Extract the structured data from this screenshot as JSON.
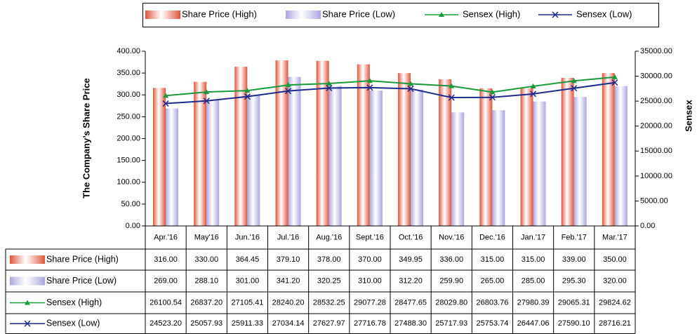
{
  "chart_data": {
    "type": "bar-line",
    "y_label": "The Company’s Share Price",
    "y2_label": "Sensex",
    "categories": [
      "Apr.'16",
      "May'16",
      "Jun.'16",
      "Jul.'16",
      "Aug.'16",
      "Sept.'16",
      "Oct.'16",
      "Nov.'16",
      "Dec.'16",
      "Jan.'17",
      "Feb.'17",
      "Mar.'17"
    ],
    "ylim": [
      0,
      400
    ],
    "yticks": [
      {
        "value": 0,
        "label": "0.00"
      },
      {
        "value": 50,
        "label": "50.00"
      },
      {
        "value": 100,
        "label": "100.00"
      },
      {
        "value": 150,
        "label": "150.00"
      },
      {
        "value": 200,
        "label": "200.00"
      },
      {
        "value": 250,
        "label": "250.00"
      },
      {
        "value": 300,
        "label": "300.00"
      },
      {
        "value": 350,
        "label": "350.00"
      },
      {
        "value": 400,
        "label": "400.00"
      }
    ],
    "y2lim": [
      0,
      35000
    ],
    "y2ticks": [
      {
        "value": 0,
        "label": "0.00"
      },
      {
        "value": 5000,
        "label": "5000.00"
      },
      {
        "value": 10000,
        "label": "10000.00"
      },
      {
        "value": 15000,
        "label": "15000.00"
      },
      {
        "value": 20000,
        "label": "20000.00"
      },
      {
        "value": 25000,
        "label": "25000.00"
      },
      {
        "value": 30000,
        "label": "30000.00"
      },
      {
        "value": 35000,
        "label": "35000.00"
      }
    ],
    "series": [
      {
        "name": "Share Price (High)",
        "kind": "bar",
        "color": "#e0523a",
        "values": [
          316,
          330,
          364.45,
          379.1,
          378,
          370,
          349.95,
          336,
          315,
          315,
          339,
          350
        ],
        "value_labels": [
          "316.00",
          "330.00",
          "364.45",
          "379.10",
          "378.00",
          "370.00",
          "349.95",
          "336.00",
          "315.00",
          "315.00",
          "339.00",
          "350.00"
        ]
      },
      {
        "name": "Share Price (Low)",
        "kind": "bar",
        "color": "#a9a5dd",
        "values": [
          269,
          288.1,
          301,
          341.2,
          320.25,
          310,
          312.2,
          259.9,
          265,
          285,
          295.3,
          320
        ],
        "value_labels": [
          "269.00",
          "288.10",
          "301.00",
          "341.20",
          "320.25",
          "310.00",
          "312.20",
          "259.90",
          "265.00",
          "285.00",
          "295.30",
          "320.00"
        ]
      },
      {
        "name": "Sensex (High)",
        "kind": "line",
        "marker": "triangle",
        "axis": "y2",
        "color": "#1a9a3a",
        "values": [
          26100.54,
          26837.2,
          27105.41,
          28240.2,
          28532.25,
          29077.28,
          28477.65,
          28029.8,
          26803.76,
          27980.39,
          29065.31,
          29824.62
        ],
        "value_labels": [
          "26100.54",
          "26837.20",
          "27105.41",
          "28240.20",
          "28532.25",
          "29077.28",
          "28477.65",
          "28029.80",
          "26803.76",
          "27980.39",
          "29065.31",
          "29824.62"
        ]
      },
      {
        "name": "Sensex (Low)",
        "kind": "line",
        "marker": "x",
        "axis": "y2",
        "color": "#1e2a8a",
        "values": [
          24523.2,
          25057.93,
          25911.33,
          27034.14,
          27627.97,
          27716.78,
          27488.3,
          25717.93,
          25753.74,
          26447.06,
          27590.1,
          28716.21
        ],
        "value_labels": [
          "24523.20",
          "25057.93",
          "25911.33",
          "27034.14",
          "27627.97",
          "27716.78",
          "27488.30",
          "25717.93",
          "25753.74",
          "26447.06",
          "27590.10",
          "28716.21"
        ]
      }
    ]
  }
}
